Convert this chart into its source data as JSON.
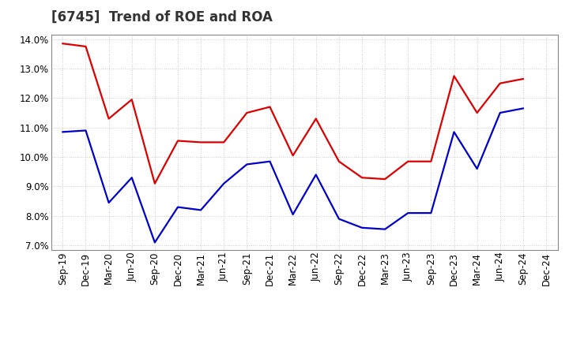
{
  "title": "[6745]  Trend of ROE and ROA",
  "labels": [
    "Sep-19",
    "Dec-19",
    "Mar-20",
    "Jun-20",
    "Sep-20",
    "Dec-20",
    "Mar-21",
    "Jun-21",
    "Sep-21",
    "Dec-21",
    "Mar-22",
    "Jun-22",
    "Sep-22",
    "Dec-22",
    "Mar-23",
    "Jun-23",
    "Sep-23",
    "Dec-23",
    "Mar-24",
    "Jun-24",
    "Sep-24",
    "Dec-24"
  ],
  "roe": [
    13.85,
    13.75,
    11.3,
    11.95,
    9.1,
    10.55,
    10.5,
    10.5,
    11.5,
    11.7,
    10.05,
    11.3,
    9.85,
    9.3,
    9.25,
    9.85,
    9.85,
    12.75,
    11.5,
    12.5,
    12.65,
    null
  ],
  "roa": [
    10.85,
    10.9,
    8.45,
    9.3,
    7.1,
    8.3,
    8.2,
    9.1,
    9.75,
    9.85,
    8.05,
    9.4,
    7.9,
    7.6,
    7.55,
    8.1,
    8.1,
    10.85,
    9.6,
    11.5,
    11.65,
    null
  ],
  "roe_color": "#dd0000",
  "roa_color": "#0000cc",
  "background_color": "#ffffff",
  "plot_background_color": "#ffffff",
  "grid_color": "#bbbbbb",
  "ylim": [
    6.85,
    14.15
  ],
  "yticks": [
    7.0,
    8.0,
    9.0,
    10.0,
    11.0,
    12.0,
    13.0,
    14.0
  ],
  "title_fontsize": 12,
  "legend_fontsize": 10,
  "axis_fontsize": 8.5,
  "line_width": 1.6
}
